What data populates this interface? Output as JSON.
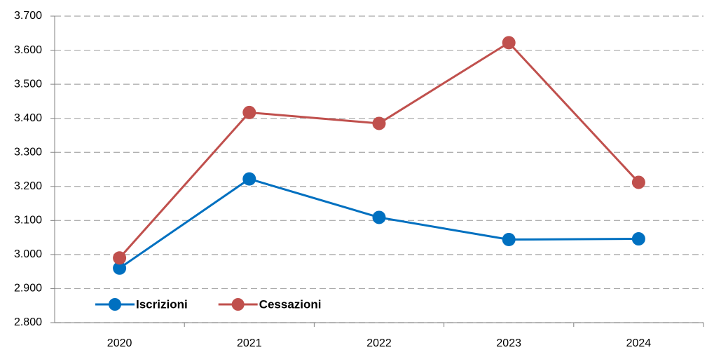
{
  "chart_data": {
    "type": "line",
    "categories": [
      "2020",
      "2021",
      "2022",
      "2023",
      "2024"
    ],
    "series": [
      {
        "name": "Iscrizioni",
        "color": "#0070c0",
        "values": [
          2960,
          3222,
          3109,
          3044,
          3046
        ]
      },
      {
        "name": "Cessazioni",
        "color": "#c0504d",
        "values": [
          2990,
          3417,
          3385,
          3622,
          3212
        ]
      }
    ],
    "ylim": [
      2800,
      3700
    ],
    "yticks": [
      {
        "value": 2800,
        "label": "2.800"
      },
      {
        "value": 2900,
        "label": "2.900"
      },
      {
        "value": 3000,
        "label": "3.000"
      },
      {
        "value": 3100,
        "label": "3.100"
      },
      {
        "value": 3200,
        "label": "3.200"
      },
      {
        "value": 3300,
        "label": "3.300"
      },
      {
        "value": 3400,
        "label": "3.400"
      },
      {
        "value": 3500,
        "label": "3.500"
      },
      {
        "value": 3600,
        "label": "3.600"
      },
      {
        "value": 3700,
        "label": "3.700"
      }
    ],
    "grid": true,
    "legend": "bottom-left"
  }
}
